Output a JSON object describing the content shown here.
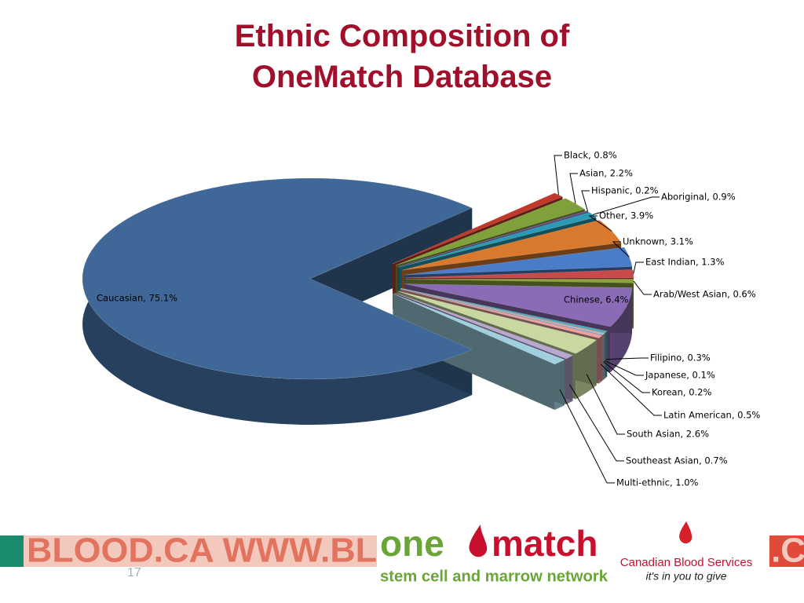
{
  "chart_data": {
    "type": "pie3d",
    "title": "Ethnic Composition of OneMatch Database",
    "values": [
      75.1,
      0.8,
      2.2,
      0.2,
      0.9,
      3.9,
      3.1,
      1.3,
      0.6,
      6.4,
      0.3,
      0.1,
      0.2,
      0.5,
      2.6,
      0.7,
      1.0
    ],
    "value_labels": [
      "Caucasian, 75.1%",
      "Black, 0.8%",
      "Asian, 2.2%",
      "Hispanic, 0.2%",
      "Aboriginal, 0.9%",
      "Other, 3.9%",
      "Unknown, 3.1%",
      "East Indian, 1.3%",
      "Arab/West Asian, 0.6%",
      "Chinese, 6.4%",
      "Filipino, 0.3%",
      "Japanese, 0.1%",
      "Korean, 0.2%",
      "Latin American, 0.5%",
      "South Asian, 2.6%",
      "Southeast Asian, 0.7%",
      "Multi-ethnic, 1.0%"
    ],
    "colors": [
      "#3f6797",
      "#c0392b",
      "#7fa03a",
      "#6a4c93",
      "#2b9bb5",
      "#d9792e",
      "#4a7cc7",
      "#c94a4a",
      "#8aa33a",
      "#8a6bb5",
      "#4aa9c4",
      "#f0a070",
      "#a8c0e0",
      "#e8a0a0",
      "#c8d8a0",
      "#b8a8d0",
      "#a0d0e0"
    ]
  },
  "footer": {
    "banner": "BLOOD.CA WWW.BL",
    "banner_right": ".C",
    "page_number": "17",
    "logo_one": "one",
    "logo_match": "match",
    "logo_tagline": "stem cell and marrow network",
    "cbs_name": "Canadian Blood Services",
    "cbs_tagline": "it's in you to give"
  }
}
